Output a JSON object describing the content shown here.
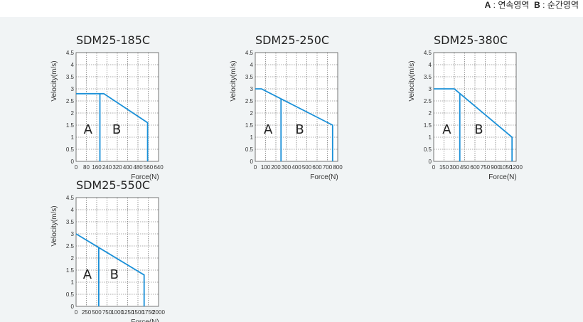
{
  "legend": {
    "a_key": "A",
    "a_text": " : 연속영역",
    "b_key": "B",
    "b_text": " : 순간영역"
  },
  "colors": {
    "background": "#f1f4f5",
    "curve": "#1a90d8",
    "grid": "#555555"
  },
  "chart_data": [
    {
      "type": "line",
      "title": "SDM25-185C",
      "xlabel": "Force(N)",
      "ylabel": "Velocity(m/s)",
      "xlim": [
        0,
        640
      ],
      "ylim": [
        0,
        4.5
      ],
      "xticks": [
        "0",
        "80",
        "160",
        "240",
        "320",
        "400",
        "480",
        "560",
        "640"
      ],
      "yticks": [
        "0",
        "0.5",
        "1",
        "1.5",
        "2",
        "2.5",
        "3",
        "3.5",
        "4",
        "4.5"
      ],
      "region_labels": [
        "A",
        "B"
      ],
      "continuous_force": 185,
      "peak_force": 555,
      "points": [
        [
          0,
          2.8
        ],
        [
          215,
          2.8
        ],
        [
          555,
          1.6
        ],
        [
          555,
          0
        ]
      ]
    },
    {
      "type": "line",
      "title": "SDM25-250C",
      "xlabel": "Force(N)",
      "ylabel": "Velocity(m/s)",
      "xlim": [
        0,
        800
      ],
      "ylim": [
        0,
        4.5
      ],
      "xticks": [
        "0",
        "100",
        "200",
        "300",
        "400",
        "500",
        "600",
        "700",
        "800"
      ],
      "yticks": [
        "0",
        "0.5",
        "1",
        "1.5",
        "2",
        "2.5",
        "3",
        "3.5",
        "4",
        "4.5"
      ],
      "region_labels": [
        "A",
        "B"
      ],
      "continuous_force": 250,
      "peak_force": 750,
      "points": [
        [
          0,
          3.0
        ],
        [
          60,
          3.0
        ],
        [
          750,
          1.5
        ],
        [
          750,
          0
        ]
      ]
    },
    {
      "type": "line",
      "title": "SDM25-380C",
      "xlabel": "Force(N)",
      "ylabel": "Velocity(m/s)",
      "xlim": [
        0,
        1200
      ],
      "ylim": [
        0,
        4.5
      ],
      "xticks": [
        "0",
        "150",
        "300",
        "450",
        "600",
        "750",
        "900",
        "1050",
        "1200"
      ],
      "yticks": [
        "0",
        "0.5",
        "1",
        "1.5",
        "2",
        "2.5",
        "3",
        "3.5",
        "4",
        "4.5"
      ],
      "region_labels": [
        "A",
        "B"
      ],
      "continuous_force": 380,
      "peak_force": 1140,
      "points": [
        [
          0,
          3.0
        ],
        [
          300,
          3.0
        ],
        [
          1140,
          1.0
        ],
        [
          1140,
          0
        ]
      ]
    },
    {
      "type": "line",
      "title": "SDM25-550C",
      "xlabel": "Force(N)",
      "ylabel": "Velocity(m/s)",
      "xlim": [
        0,
        2000
      ],
      "ylim": [
        0,
        4.5
      ],
      "xticks": [
        "0",
        "250",
        "500",
        "750",
        "1000",
        "1250",
        "1500",
        "1750",
        "2000"
      ],
      "yticks": [
        "0",
        "0.5",
        "1",
        "1.5",
        "2",
        "2.5",
        "3",
        "3.5",
        "4",
        "4.5"
      ],
      "region_labels": [
        "A",
        "B"
      ],
      "continuous_force": 550,
      "peak_force": 1650,
      "points": [
        [
          0,
          3.0
        ],
        [
          1650,
          1.3
        ],
        [
          1650,
          0
        ]
      ]
    }
  ]
}
